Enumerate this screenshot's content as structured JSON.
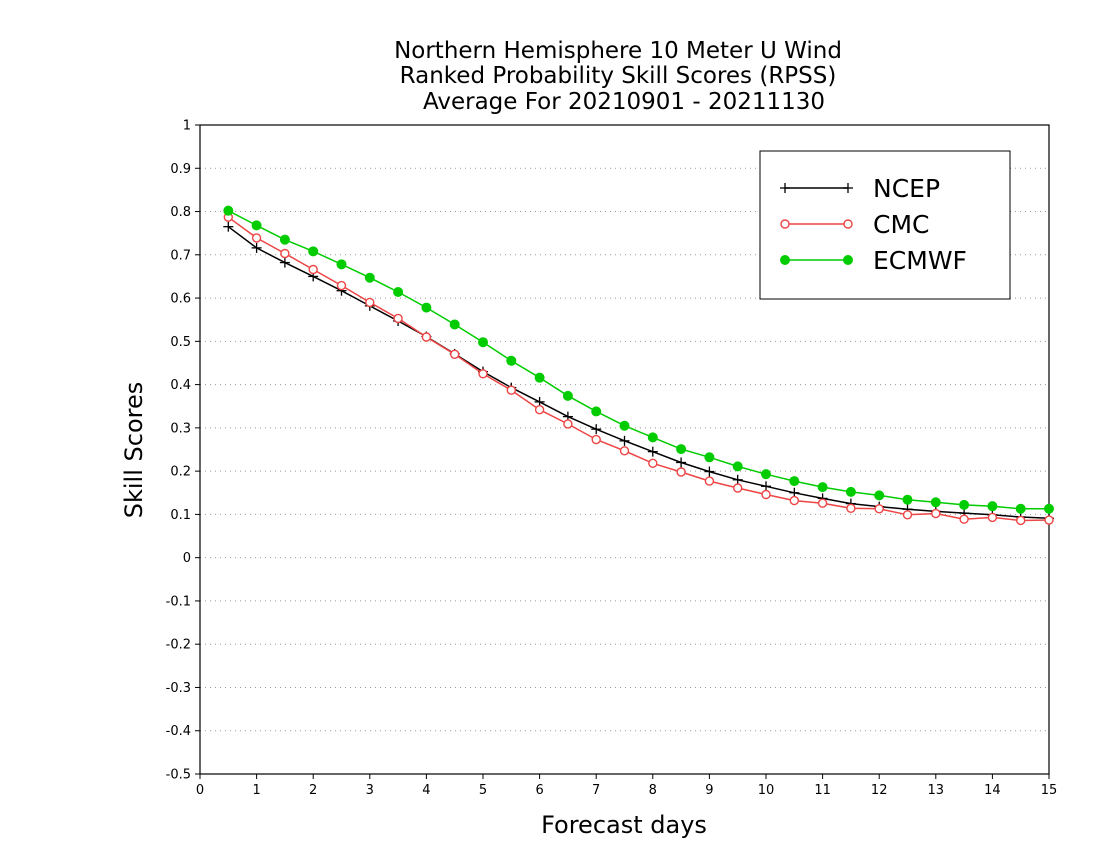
{
  "chart_data": {
    "type": "line",
    "title": [
      "Northern Hemisphere 10 Meter U Wind",
      "Ranked Probability Skill Scores (RPSS)",
      "Average For 20210901 - 20211130"
    ],
    "xlabel": "Forecast days",
    "ylabel": "Skill Scores",
    "xlim": [
      0,
      15
    ],
    "ylim": [
      -0.5,
      1
    ],
    "xticks": [
      "0",
      "1",
      "2",
      "3",
      "4",
      "5",
      "6",
      "7",
      "8",
      "9",
      "10",
      "11",
      "12",
      "13",
      "14",
      "15"
    ],
    "yticks": [
      "-0.5",
      "-0.4",
      "-0.3",
      "-0.2",
      "-0.1",
      "0",
      "0.1",
      "0.2",
      "0.3",
      "0.4",
      "0.5",
      "0.6",
      "0.7",
      "0.8",
      "0.9",
      "1"
    ],
    "grid": "horizontal dotted",
    "legend_position": "top-right",
    "x": [
      0.5,
      1,
      1.5,
      2,
      2.5,
      3,
      3.5,
      4,
      4.5,
      5,
      5.5,
      6,
      6.5,
      7,
      7.5,
      8,
      8.5,
      9,
      9.5,
      10,
      10.5,
      11,
      11.5,
      12,
      12.5,
      13,
      13.5,
      14,
      14.5,
      15
    ],
    "series": [
      {
        "name": "NCEP",
        "color": "#000000",
        "marker": "plus",
        "values": [
          0.765,
          0.716,
          0.682,
          0.65,
          0.617,
          0.582,
          0.547,
          0.511,
          0.471,
          0.43,
          0.393,
          0.36,
          0.326,
          0.297,
          0.27,
          0.245,
          0.22,
          0.199,
          0.18,
          0.165,
          0.15,
          0.137,
          0.125,
          0.118,
          0.112,
          0.107,
          0.103,
          0.099,
          0.094,
          0.091
        ]
      },
      {
        "name": "CMC",
        "color": "#ee4444",
        "marker": "open-circle",
        "values": [
          0.787,
          0.739,
          0.703,
          0.666,
          0.629,
          0.59,
          0.553,
          0.51,
          0.47,
          0.425,
          0.387,
          0.342,
          0.309,
          0.273,
          0.247,
          0.218,
          0.198,
          0.177,
          0.161,
          0.146,
          0.132,
          0.126,
          0.114,
          0.113,
          0.099,
          0.102,
          0.089,
          0.093,
          0.086,
          0.087
        ]
      },
      {
        "name": "ECMWF",
        "color": "#00cc00",
        "marker": "filled-circle",
        "values": [
          0.802,
          0.768,
          0.735,
          0.708,
          0.678,
          0.647,
          0.614,
          0.578,
          0.539,
          0.498,
          0.455,
          0.416,
          0.374,
          0.338,
          0.305,
          0.278,
          0.251,
          0.232,
          0.211,
          0.193,
          0.177,
          0.163,
          0.152,
          0.144,
          0.134,
          0.128,
          0.122,
          0.119,
          0.113,
          0.113
        ]
      }
    ]
  }
}
